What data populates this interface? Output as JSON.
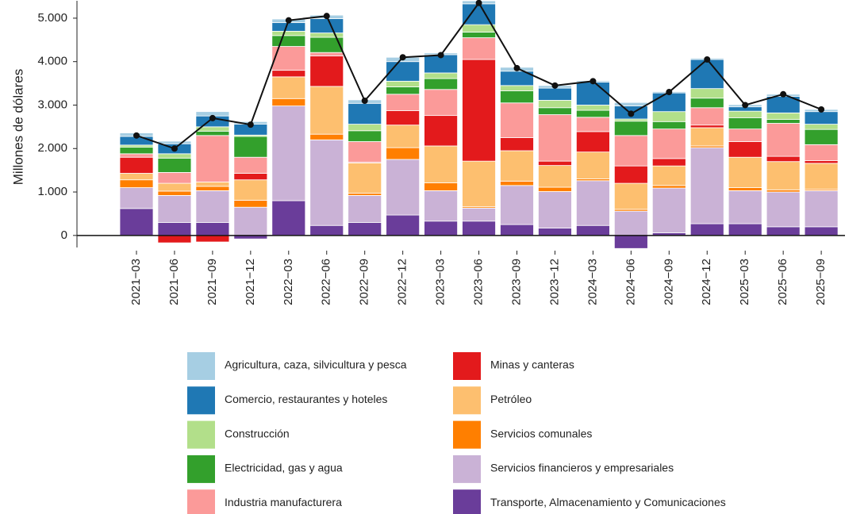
{
  "chart_data": {
    "type": "bar",
    "stacked": true,
    "y_label": "Millones de dólares",
    "categories": [
      "2021−03",
      "2021−06",
      "2021−09",
      "2021−12",
      "2022−03",
      "2022−06",
      "2022−09",
      "2022−12",
      "2023−03",
      "2023−06",
      "2023−09",
      "2023−12",
      "2024−03",
      "2024−06",
      "2024−09",
      "2024−12",
      "2025−03",
      "2025−06",
      "2025−09"
    ],
    "series": [
      {
        "name": "Agricultura, caza, silvicultura y pesca",
        "color": "#a6cee3",
        "values": [
          80,
          60,
          100,
          60,
          80,
          80,
          80,
          100,
          40,
          70,
          90,
          60,
          30,
          80,
          30,
          30,
          50,
          50,
          50
        ]
      },
      {
        "name": "Comercio, restaurantes y hoteles",
        "color": "#1f78b4",
        "values": [
          200,
          230,
          250,
          250,
          200,
          330,
          480,
          450,
          420,
          480,
          330,
          280,
          530,
          300,
          430,
          670,
          100,
          380,
          290
        ]
      },
      {
        "name": "Construcción",
        "color": "#b2df8a",
        "values": [
          50,
          100,
          100,
          30,
          100,
          100,
          150,
          130,
          130,
          170,
          120,
          170,
          120,
          50,
          230,
          220,
          150,
          150,
          120
        ]
      },
      {
        "name": "Electricidad, gas y agua",
        "color": "#33a02c",
        "values": [
          150,
          330,
          100,
          480,
          250,
          350,
          250,
          170,
          250,
          130,
          280,
          160,
          160,
          330,
          170,
          220,
          260,
          90,
          350
        ]
      },
      {
        "name": "Industria manufacturera",
        "color": "#fb9a99",
        "values": [
          80,
          250,
          1070,
          370,
          550,
          80,
          470,
          380,
          600,
          500,
          800,
          1070,
          330,
          700,
          680,
          400,
          290,
          760,
          370
        ]
      },
      {
        "name": "Minas y canteras",
        "color": "#e31a1c",
        "values": [
          370,
          -170,
          -150,
          150,
          150,
          700,
          20,
          330,
          700,
          2340,
          300,
          100,
          470,
          400,
          170,
          60,
          360,
          120,
          60
        ]
      },
      {
        "name": "Petróleo",
        "color": "#fdbf6f",
        "values": [
          150,
          180,
          100,
          470,
          500,
          1100,
          700,
          520,
          850,
          1050,
          700,
          500,
          620,
          600,
          450,
          420,
          700,
          650,
          600
        ]
      },
      {
        "name": "Servicios comunales",
        "color": "#ff7f00",
        "values": [
          180,
          100,
          100,
          160,
          170,
          130,
          50,
          270,
          180,
          30,
          100,
          100,
          40,
          40,
          60,
          40,
          70,
          50,
          30
        ]
      },
      {
        "name": "Servicios financieros y empresariales",
        "color": "#cab2d6",
        "values": [
          480,
          620,
          730,
          650,
          2180,
          1970,
          620,
          1280,
          700,
          300,
          900,
          840,
          1030,
          560,
          1030,
          1750,
          760,
          800,
          830
        ]
      },
      {
        "name": "Transporte, Almacenamiento y Comunicaciones",
        "color": "#6a3d9a",
        "values": [
          620,
          300,
          300,
          -80,
          800,
          230,
          300,
          470,
          330,
          330,
          250,
          170,
          230,
          -300,
          60,
          270,
          270,
          200,
          200
        ]
      }
    ],
    "line_values": [
      2300,
      2000,
      2700,
      2550,
      4950,
      5050,
      3100,
      4100,
      4150,
      5350,
      3850,
      3450,
      3550,
      2800,
      3300,
      4050,
      3000,
      3250,
      2900
    ],
    "line_color": "#111111",
    "ylim": [
      -350,
      5400
    ],
    "yticks": [
      0,
      {
        "value": 1000,
        "label": "1.000"
      },
      {
        "value": 2000,
        "label": "2.000"
      },
      {
        "value": 3000,
        "label": "3.000"
      },
      {
        "value": 4000,
        "label": "4.000"
      },
      {
        "value": 5000,
        "label": "5.000"
      }
    ],
    "legend": "bottom"
  }
}
